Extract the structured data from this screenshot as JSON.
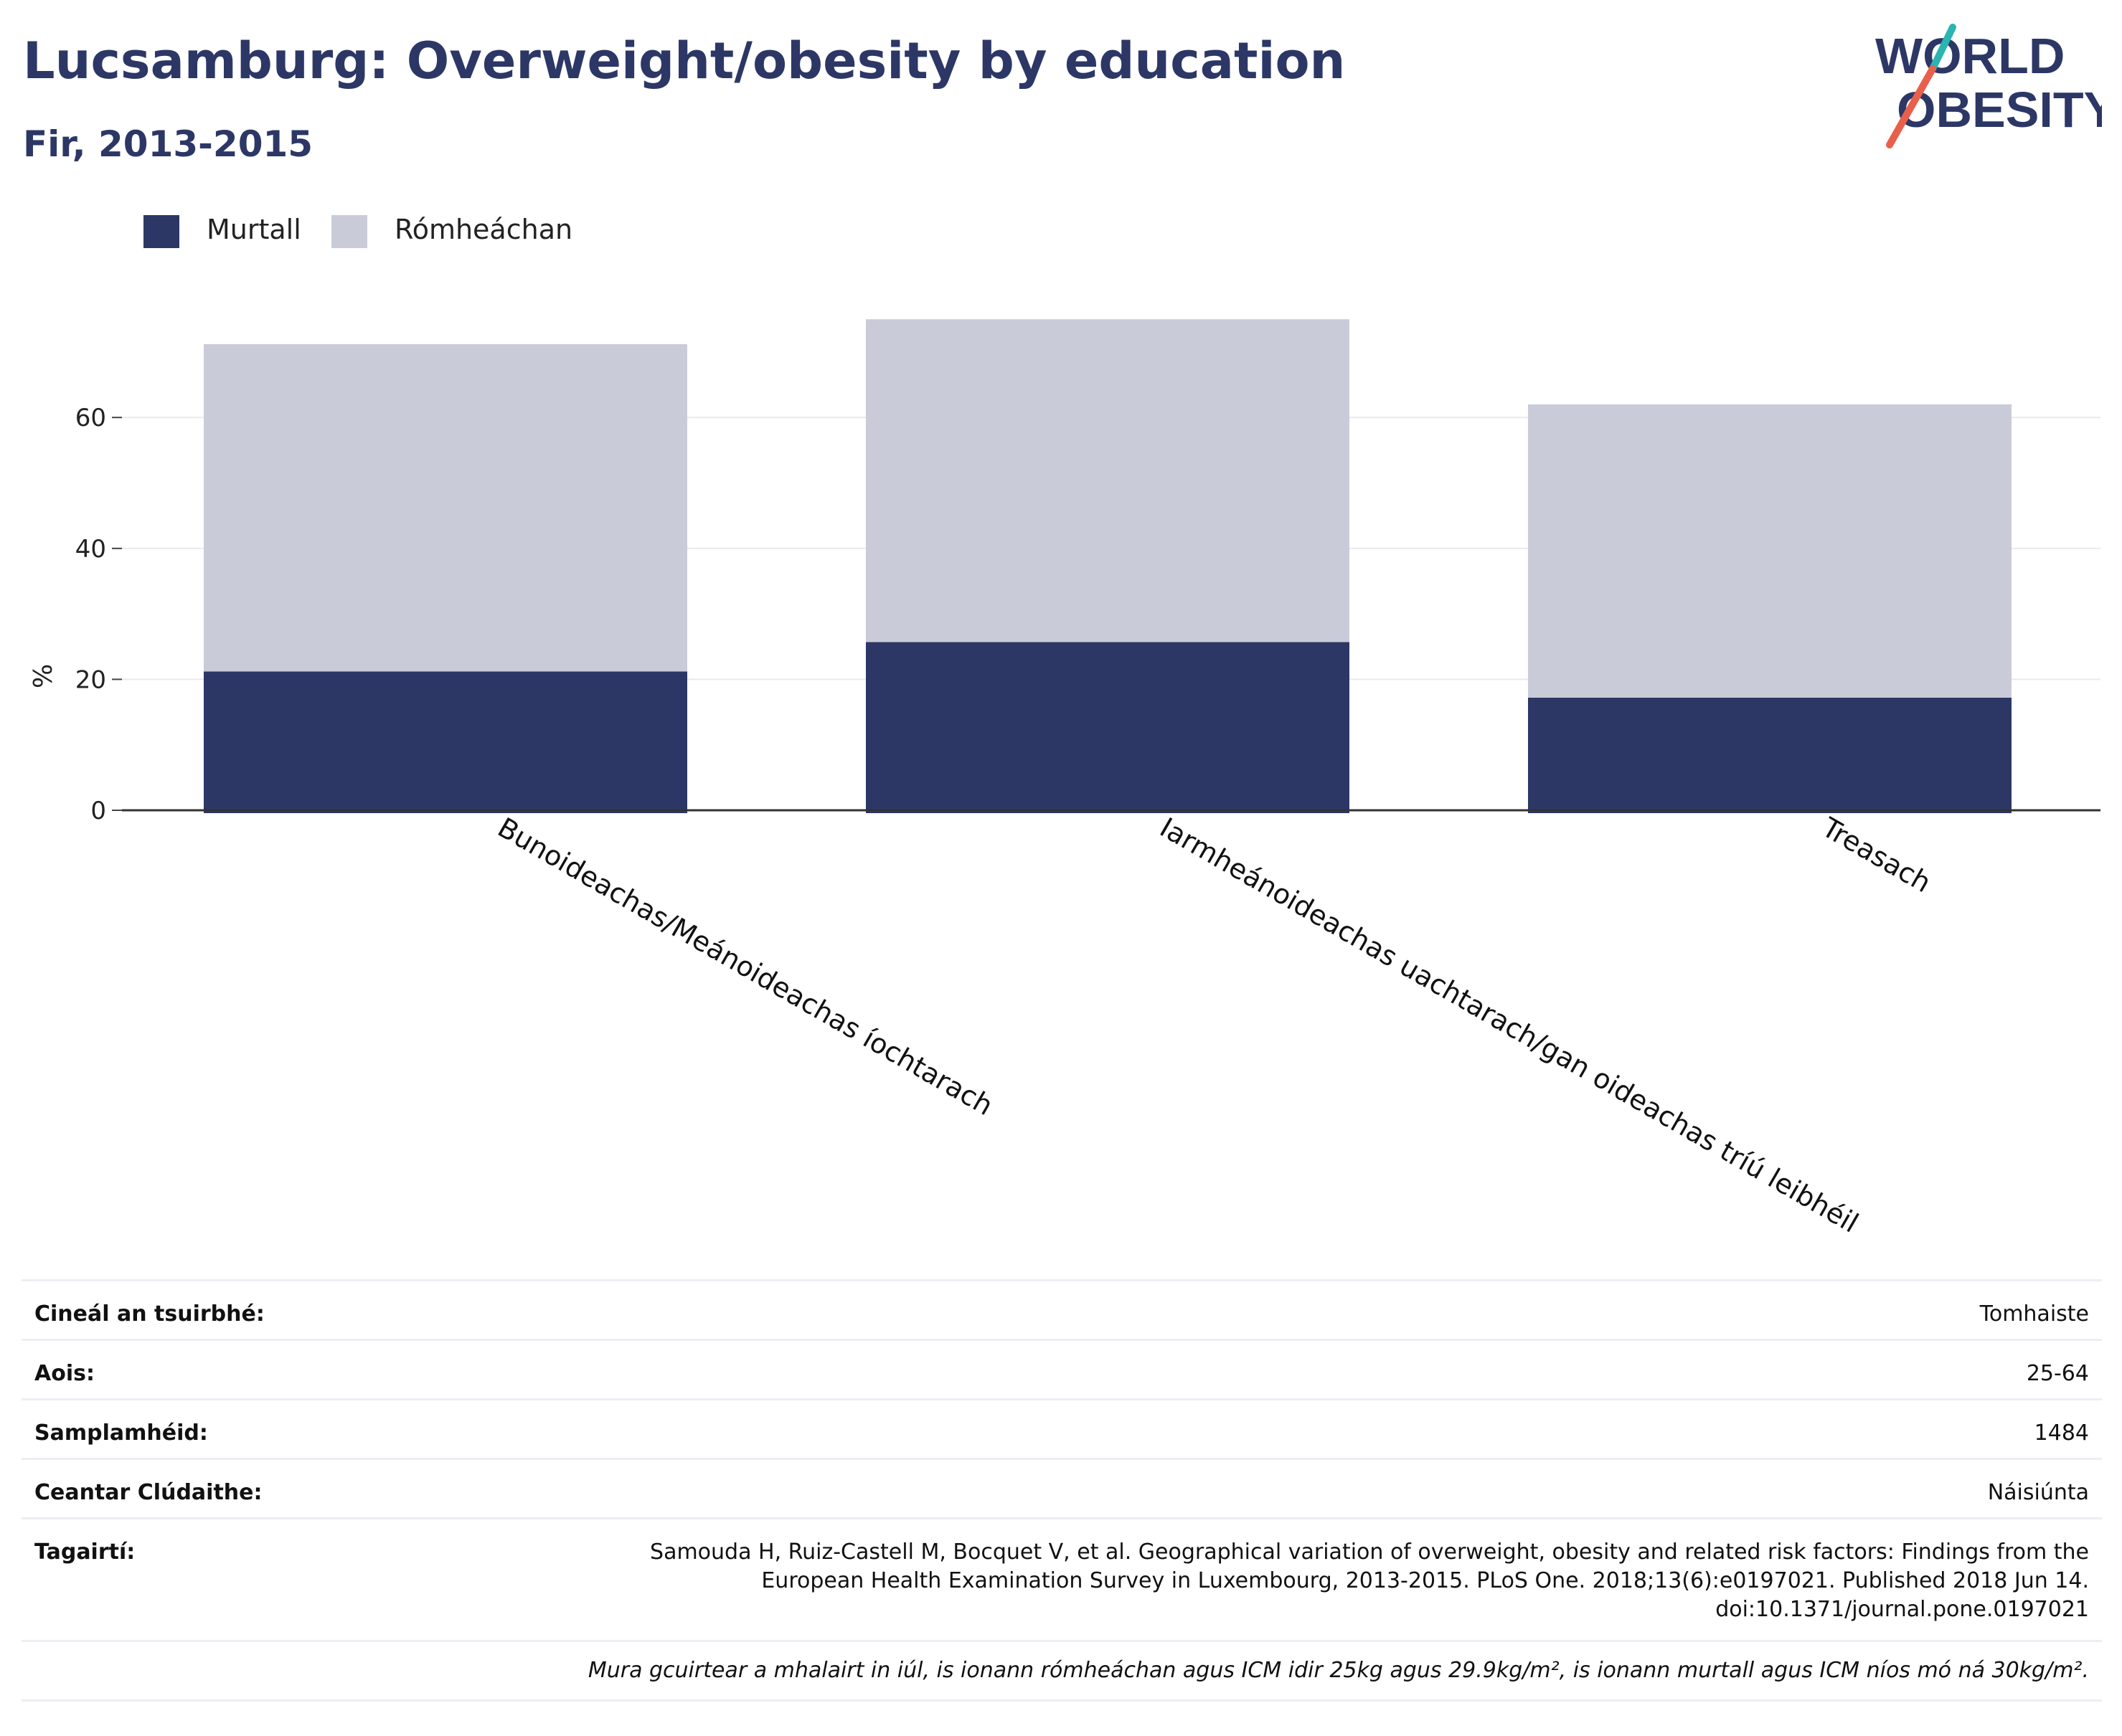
{
  "header": {
    "title": "Lucsamburg: Overweight/obesity by education",
    "subtitle": "Fir, 2013-2015"
  },
  "logo": {
    "line1": "WORLD",
    "line2": "OBESITY",
    "accent_colors": [
      "#2ab5b0",
      "#e8604c"
    ],
    "text_color": "#2c3766"
  },
  "colors": {
    "obese": "#2c3766",
    "overweight": "#c9ccd8",
    "title": "#2c3766"
  },
  "chart_data": {
    "type": "bar",
    "stacked": true,
    "categories": [
      "Bunoideachas/Meánoideachas íochtarach",
      "Iarmheánoideachas uachtarach/gan oideachas tríú leibhéil",
      "Treasach"
    ],
    "series": [
      {
        "name": "Murtall",
        "values": [
          21.2,
          25.7,
          17.2
        ]
      },
      {
        "name": "Rómheáchan",
        "values": [
          50.0,
          49.3,
          44.8
        ]
      }
    ],
    "ylabel": "%",
    "xlabel": "",
    "ylim": [
      0,
      78
    ],
    "yticks": [
      0,
      20,
      40,
      60
    ],
    "grid": true,
    "legend_position": "top-left"
  },
  "meta": {
    "rows": [
      {
        "key": "Cineál an tsuirbhé:",
        "value": "Tomhaiste"
      },
      {
        "key": "Aois:",
        "value": "25-64"
      },
      {
        "key": "Samplamhéid:",
        "value": "1484"
      },
      {
        "key": "Ceantar Clúdaithe:",
        "value": "Náisiúnta"
      },
      {
        "key": "Tagairtí:",
        "value_lines": [
          "Samouda H, Ruiz-Castell M, Bocquet V, et al. Geographical variation of overweight, obesity and related risk factors: Findings from the",
          "European Health Examination Survey in Luxembourg, 2013-2015. PLoS One. 2018;13(6):e0197021. Published 2018 Jun 14.",
          "doi:10.1371/journal.pone.0197021"
        ]
      }
    ],
    "note": "Mura gcuirtear a mhalairt in iúl, is ionann rómheáchan agus ICM idir 25kg agus 29.9kg/m², is ionann murtall agus ICM níos mó ná 30kg/m²."
  }
}
